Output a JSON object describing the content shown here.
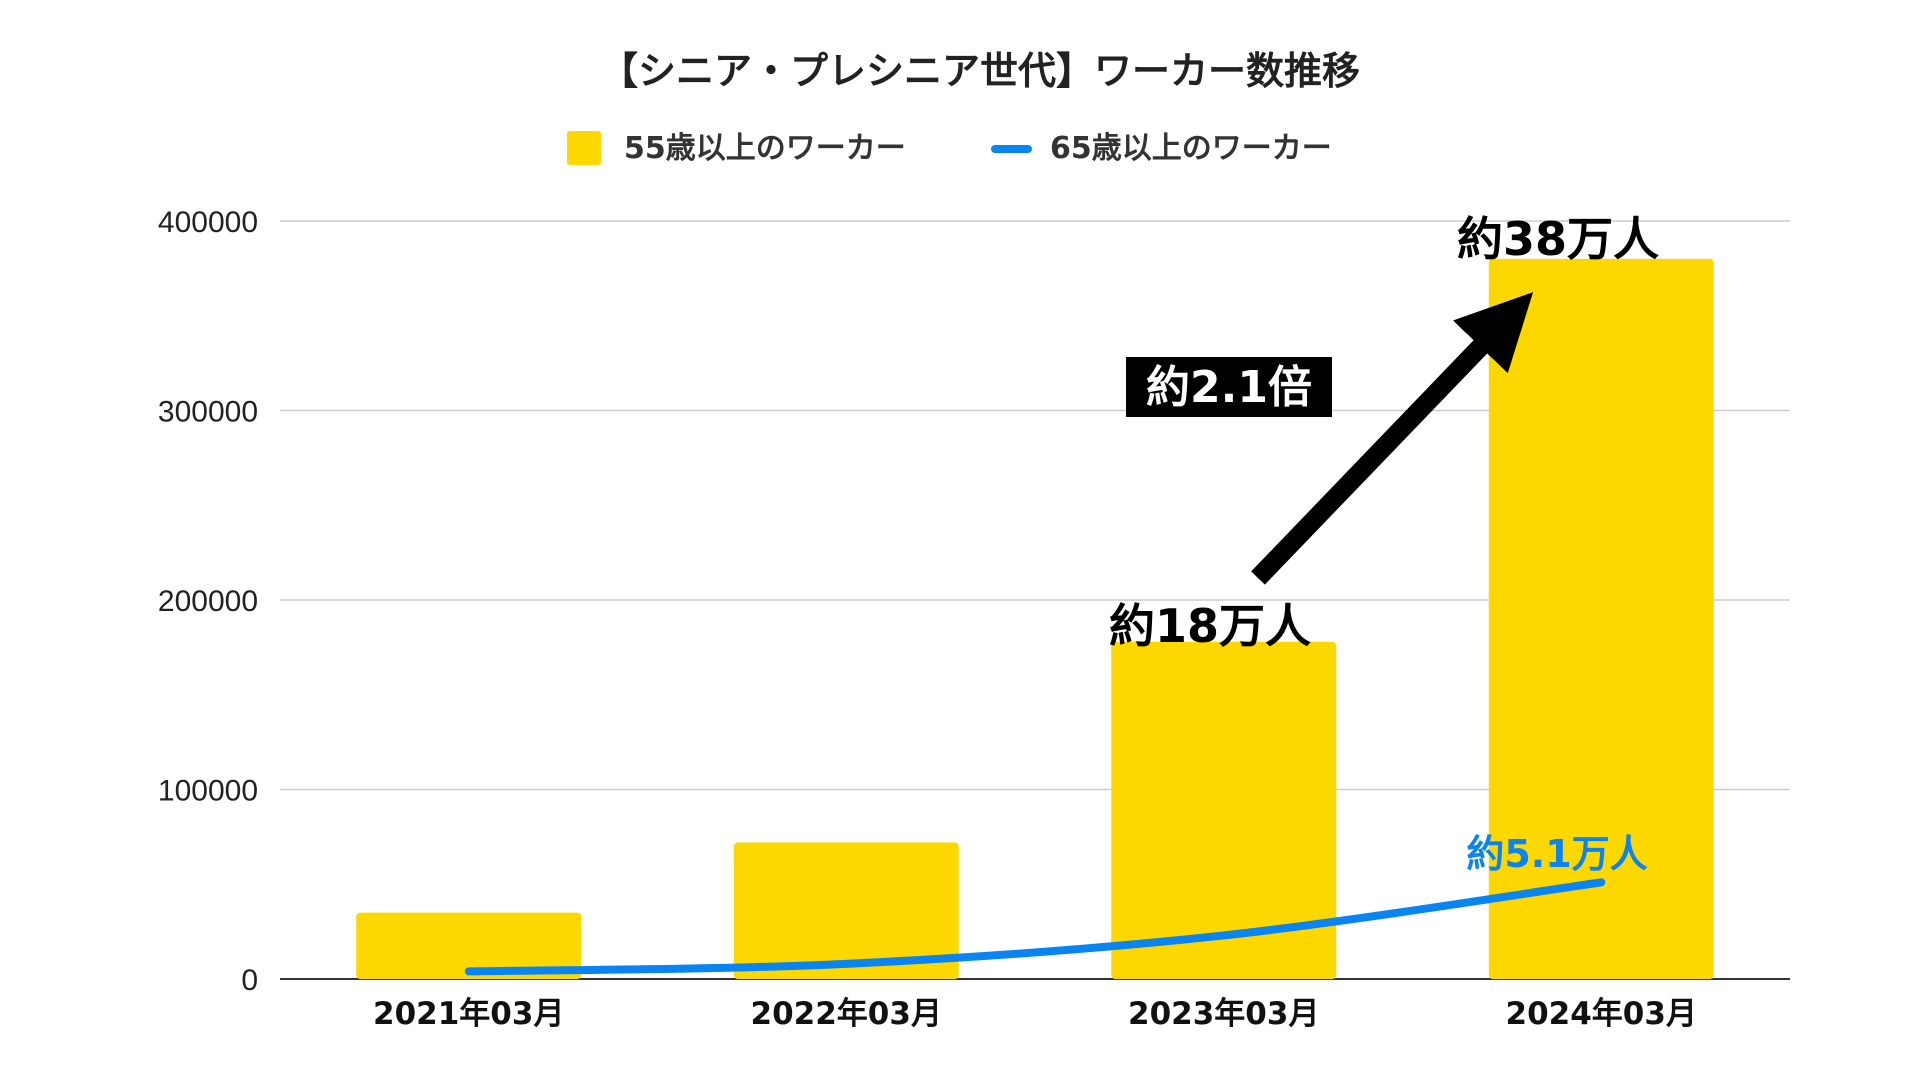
{
  "chart_data": {
    "type": "bar",
    "title": "【シニア・プレシニア世代】ワーカー数推移",
    "categories": [
      "2021年03月",
      "2022年03月",
      "2023年03月",
      "2024年03月"
    ],
    "series": [
      {
        "name": "55歳以上のワーカー",
        "kind": "bar",
        "color": "#FDD700",
        "values": [
          35000,
          72000,
          178000,
          380000
        ]
      },
      {
        "name": "65歳以上のワーカー",
        "kind": "line",
        "color": "#0A84F0",
        "values": [
          4000,
          8000,
          23000,
          51000
        ]
      }
    ],
    "ylim": [
      0,
      400000
    ],
    "yticks": [
      "0",
      "100000",
      "200000",
      "300000",
      "400000"
    ],
    "grid": true,
    "legend_position": "top",
    "annotations": {
      "bar_2023": "約18万人",
      "bar_2024": "約38万人",
      "line_2024": "約5.1万人",
      "ratio": "約2.1倍"
    }
  }
}
